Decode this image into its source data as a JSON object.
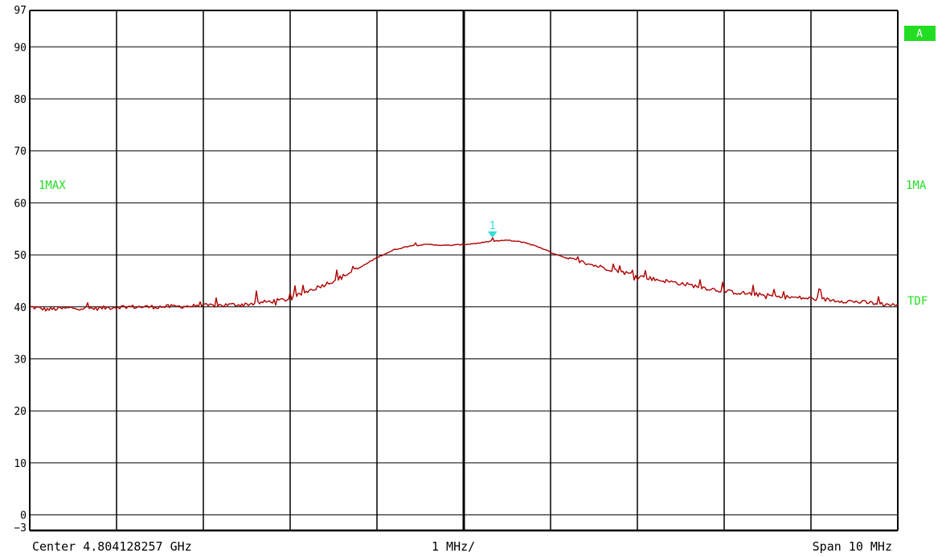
{
  "labels": {
    "left_trace": "1MAX",
    "right_trace": "1MA",
    "right_tdf": "TDF",
    "badge": "A",
    "center": "Center 4.804128257 GHz",
    "per_div": "1 MHz/",
    "span": "Span 10 MHz"
  },
  "colors": {
    "background": "#ffffff",
    "grid": "#000000",
    "trace": "#b00000",
    "annotation": "#22dd22",
    "badge_bg": "#22dd22",
    "marker": "#33dddd"
  },
  "chart_data": {
    "type": "line",
    "title": "",
    "xlabel": "",
    "ylabel": "",
    "x_unit": "MHz offset from center",
    "xlim": [
      -5,
      5
    ],
    "ylim": [
      -3,
      97
    ],
    "y_ticks": [
      97,
      90,
      80,
      70,
      60,
      50,
      40,
      30,
      20,
      10,
      0,
      -3
    ],
    "grid": true,
    "series": [
      {
        "name": "1MAX",
        "color": "#b00000",
        "x": [
          -5,
          -4.8,
          -4.5,
          -4.2,
          -4.0,
          -3.5,
          -3.0,
          -2.5,
          -2.0,
          -1.8,
          -1.5,
          -1.2,
          -1.0,
          -0.8,
          -0.6,
          -0.4,
          -0.2,
          0,
          0.2,
          0.3,
          0.5,
          0.7,
          0.9,
          1.0,
          1.2,
          1.5,
          1.8,
          2.0,
          2.2,
          2.5,
          2.8,
          3.0,
          3.3,
          3.6,
          4.0,
          4.5,
          5.0
        ],
        "values": [
          40,
          39.5,
          39.8,
          39.7,
          40,
          40,
          40.2,
          40.5,
          41.5,
          43,
          45,
          47.5,
          49.5,
          51,
          51.8,
          52,
          51.8,
          52,
          52.3,
          52.6,
          52.8,
          52.4,
          51.3,
          50.5,
          49.3,
          48,
          46.8,
          46,
          45.3,
          44.5,
          43.6,
          43,
          42.5,
          42,
          41.6,
          41,
          40.3
        ]
      }
    ],
    "markers": [
      {
        "label": "1",
        "x": 0.33,
        "y": 52.5
      }
    ]
  }
}
